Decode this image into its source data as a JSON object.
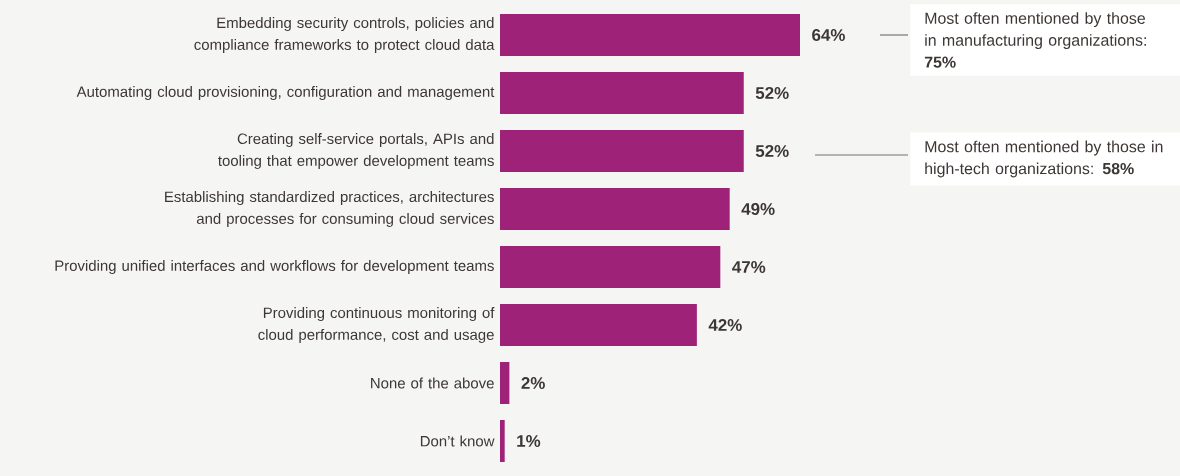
{
  "chart_data": {
    "type": "bar",
    "orientation": "horizontal",
    "categories": [
      "Embedding security controls, policies and compliance frameworks to protect cloud data",
      "Automating cloud provisioning, configuration and management",
      "Creating self-service portals, APIs and tooling that empower development teams",
      "Establishing standardized practices, architectures and processes for consuming cloud services",
      "Providing unified interfaces and workflows for development teams",
      "Providing continuous monitoring of cloud performance, cost and usage",
      "None of the above",
      "Don’t know"
    ],
    "values": [
      64,
      52,
      52,
      49,
      47,
      42,
      2,
      1
    ],
    "value_labels": [
      "64%",
      "52%",
      "52%",
      "49%",
      "47%",
      "42%",
      "2%",
      "1%"
    ],
    "color": "#9e2277",
    "annotations": [
      "Most often mentioned by those in manufacturing organizations: **75%**",
      "Most often mentioned by those in high-tech organizations: **58%**"
    ]
  }
}
